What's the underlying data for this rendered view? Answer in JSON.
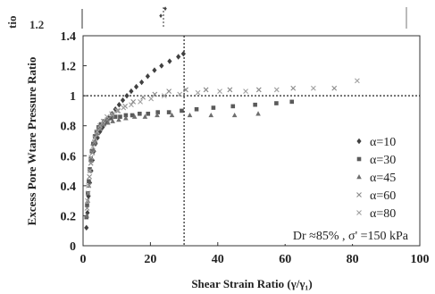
{
  "cropped_top": {
    "left_label": "tio",
    "tick_label": "1.2"
  },
  "chart_data": {
    "type": "scatter",
    "xlabel": "Shear Strain Ratio (γ/γ₁)",
    "ylabel": "Excess Pore Wtare Pressure Ratio",
    "xlim": [
      0,
      100
    ],
    "ylim": [
      0,
      1.4
    ],
    "x_ticks": [
      "0",
      "20",
      "40",
      "60",
      "80",
      "100"
    ],
    "y_ticks": [
      "0",
      "0.2",
      "0.4",
      "0.6",
      "0.8",
      "1",
      "1.2",
      "1.4"
    ],
    "grid": false,
    "reference_lines": {
      "vertical_x": 30,
      "horizontal_y": 1
    },
    "annotation": "Dr ≈85% , σ' =150 kPa",
    "legend_position": "right",
    "series": [
      {
        "name": "α=10",
        "marker": "diamond",
        "color": "#404040",
        "points": [
          [
            1,
            0.12
          ],
          [
            1.3,
            0.22
          ],
          [
            1.6,
            0.33
          ],
          [
            2,
            0.42
          ],
          [
            2.4,
            0.5
          ],
          [
            2.8,
            0.57
          ],
          [
            3.2,
            0.63
          ],
          [
            3.7,
            0.68
          ],
          [
            4.3,
            0.72
          ],
          [
            5,
            0.76
          ],
          [
            5.8,
            0.79
          ],
          [
            6.7,
            0.82
          ],
          [
            7.6,
            0.85
          ],
          [
            8.6,
            0.88
          ],
          [
            9.6,
            0.91
          ],
          [
            10.7,
            0.94
          ],
          [
            11.8,
            0.97
          ],
          [
            13,
            1.0
          ],
          [
            14.3,
            1.03
          ],
          [
            15.8,
            1.06
          ],
          [
            17.4,
            1.09
          ],
          [
            19.2,
            1.13
          ],
          [
            21.2,
            1.17
          ],
          [
            23.3,
            1.2
          ],
          [
            25.7,
            1.23
          ],
          [
            28.3,
            1.26
          ],
          [
            29.8,
            1.28
          ]
        ]
      },
      {
        "name": "α=30",
        "marker": "square",
        "color": "#5a5a5a",
        "points": [
          [
            1,
            0.19
          ],
          [
            1.2,
            0.27
          ],
          [
            1.4,
            0.35
          ],
          [
            1.7,
            0.43
          ],
          [
            2,
            0.51
          ],
          [
            2.3,
            0.58
          ],
          [
            2.6,
            0.63
          ],
          [
            3,
            0.68
          ],
          [
            3.5,
            0.73
          ],
          [
            4,
            0.76
          ],
          [
            4.6,
            0.79
          ],
          [
            5.3,
            0.81
          ],
          [
            6.2,
            0.83
          ],
          [
            7.2,
            0.84
          ],
          [
            8.3,
            0.85
          ],
          [
            9.6,
            0.86
          ],
          [
            11,
            0.86
          ],
          [
            12.7,
            0.87
          ],
          [
            14.6,
            0.87
          ],
          [
            16.8,
            0.88
          ],
          [
            19.3,
            0.88
          ],
          [
            22.2,
            0.89
          ],
          [
            25.5,
            0.89
          ],
          [
            29.3,
            0.9
          ],
          [
            33.7,
            0.91
          ],
          [
            38.7,
            0.92
          ],
          [
            44.5,
            0.93
          ],
          [
            51.1,
            0.94
          ],
          [
            57.4,
            0.95
          ],
          [
            62,
            0.96
          ]
        ]
      },
      {
        "name": "α=45",
        "marker": "triangle",
        "color": "#6e6e6e",
        "points": [
          [
            1.1,
            0.2
          ],
          [
            1.4,
            0.3
          ],
          [
            1.7,
            0.4
          ],
          [
            2.1,
            0.5
          ],
          [
            2.5,
            0.57
          ],
          [
            3,
            0.64
          ],
          [
            3.6,
            0.7
          ],
          [
            4.3,
            0.75
          ],
          [
            5.2,
            0.78
          ],
          [
            6.2,
            0.81
          ],
          [
            7.4,
            0.82
          ],
          [
            8.8,
            0.83
          ],
          [
            10.6,
            0.84
          ],
          [
            12.7,
            0.85
          ],
          [
            15.3,
            0.86
          ],
          [
            18.4,
            0.86
          ],
          [
            22,
            0.87
          ],
          [
            26.4,
            0.87
          ],
          [
            31.7,
            0.87
          ],
          [
            38,
            0.87
          ],
          [
            45,
            0.87
          ],
          [
            52,
            0.88
          ]
        ]
      },
      {
        "name": "α=60",
        "marker": "x",
        "color": "#8a8a8a",
        "points": [
          [
            1.2,
            0.25
          ],
          [
            1.5,
            0.35
          ],
          [
            1.9,
            0.46
          ],
          [
            2.3,
            0.55
          ],
          [
            2.8,
            0.62
          ],
          [
            3.4,
            0.69
          ],
          [
            4.1,
            0.74
          ],
          [
            5,
            0.78
          ],
          [
            6,
            0.81
          ],
          [
            7.2,
            0.84
          ],
          [
            8.7,
            0.87
          ],
          [
            10.4,
            0.9
          ],
          [
            12.5,
            0.93
          ],
          [
            14.9,
            0.96
          ],
          [
            17.8,
            0.99
          ],
          [
            21.3,
            1.01
          ],
          [
            25.5,
            1.03
          ],
          [
            30.5,
            1.04
          ],
          [
            36.5,
            1.04
          ],
          [
            43.6,
            1.04
          ],
          [
            52.2,
            1.04
          ],
          [
            62.4,
            1.05
          ],
          [
            74.6,
            1.05
          ]
        ]
      },
      {
        "name": "α=80",
        "marker": "x",
        "color": "#a0a0a0",
        "points": [
          [
            1.3,
            0.3
          ],
          [
            1.6,
            0.4
          ],
          [
            2,
            0.5
          ],
          [
            2.4,
            0.59
          ],
          [
            2.9,
            0.66
          ],
          [
            3.5,
            0.72
          ],
          [
            4.2,
            0.76
          ],
          [
            5,
            0.8
          ],
          [
            6,
            0.83
          ],
          [
            7.1,
            0.86
          ],
          [
            8.5,
            0.88
          ],
          [
            10.1,
            0.9
          ],
          [
            12,
            0.92
          ],
          [
            14.3,
            0.94
          ],
          [
            17,
            0.96
          ],
          [
            20.2,
            0.98
          ],
          [
            24.1,
            1.0
          ],
          [
            28.7,
            1.01
          ],
          [
            34.1,
            1.02
          ],
          [
            40.6,
            1.03
          ],
          [
            48.3,
            1.03
          ],
          [
            57.5,
            1.04
          ],
          [
            68.4,
            1.05
          ],
          [
            81.4,
            1.1
          ]
        ]
      }
    ]
  }
}
